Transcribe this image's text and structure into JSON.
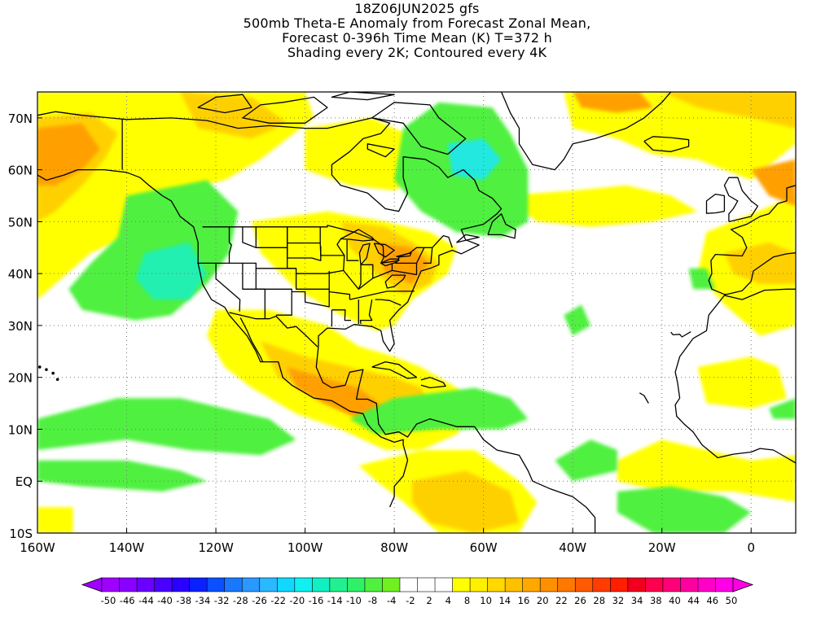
{
  "header": {
    "line1": "18Z06JUN2025 gfs",
    "line2": "500mb Theta-E Anomaly from Forecast Zonal Mean,",
    "line3": "Forecast 0-396h Time Mean (K) T=372 h",
    "line4": "Shading every 2K; Contoured every 4K"
  },
  "map": {
    "domain": {
      "lon": [
        -160,
        10
      ],
      "lat": [
        -10,
        75
      ]
    },
    "lat_ticks": [
      {
        "value": 70,
        "label": "70N"
      },
      {
        "value": 60,
        "label": "60N"
      },
      {
        "value": 50,
        "label": "50N"
      },
      {
        "value": 40,
        "label": "40N"
      },
      {
        "value": 30,
        "label": "30N"
      },
      {
        "value": 20,
        "label": "20N"
      },
      {
        "value": 10,
        "label": "10N"
      },
      {
        "value": 0,
        "label": "EQ"
      },
      {
        "value": -10,
        "label": "10S"
      }
    ],
    "lon_ticks": [
      {
        "value": -160,
        "label": "160W"
      },
      {
        "value": -140,
        "label": "140W"
      },
      {
        "value": -120,
        "label": "120W"
      },
      {
        "value": -100,
        "label": "100W"
      },
      {
        "value": -80,
        "label": "80W"
      },
      {
        "value": -60,
        "label": "60W"
      },
      {
        "value": -40,
        "label": "40W"
      },
      {
        "value": -20,
        "label": "20W"
      },
      {
        "value": 0,
        "label": "0"
      }
    ],
    "grid": true,
    "coastline_color": "#000000"
  },
  "colorbar": {
    "labels": [
      "-50",
      "-46",
      "-44",
      "-40",
      "-38",
      "-34",
      "-32",
      "-28",
      "-26",
      "-22",
      "-20",
      "-16",
      "-14",
      "-10",
      "-8",
      "-4",
      "-2",
      "2",
      "4",
      "8",
      "10",
      "14",
      "16",
      "20",
      "22",
      "26",
      "28",
      "32",
      "34",
      "38",
      "40",
      "44",
      "46",
      "50"
    ],
    "colors": [
      "#a000ff",
      "#8800ff",
      "#6a00ff",
      "#4a00ff",
      "#2a00ff",
      "#0a20ff",
      "#0a50ff",
      "#1a78ff",
      "#2a98ff",
      "#2ab8ff",
      "#10d8ff",
      "#10f0f0",
      "#10f0c0",
      "#20f090",
      "#30f068",
      "#50f040",
      "#70f020",
      "#ffffff",
      "#ffffff",
      "#ffffff",
      "#ffff00",
      "#fff000",
      "#ffd800",
      "#ffc000",
      "#ffa800",
      "#ff9000",
      "#ff7800",
      "#ff5a00",
      "#ff3c00",
      "#ff1e00",
      "#f0001e",
      "#ff0050",
      "#ff0078",
      "#ff00a0",
      "#ff00c8",
      "#ff00e6"
    ]
  },
  "field": {
    "colors": {
      "yellow": "#ffff00",
      "gold": "#ffd000",
      "orange": "#ffa000",
      "deep_orange": "#ff8400",
      "green": "#50f040",
      "lime": "#3cf070",
      "teal": "#20f0b0",
      "cyan": "#20e8e0"
    }
  }
}
